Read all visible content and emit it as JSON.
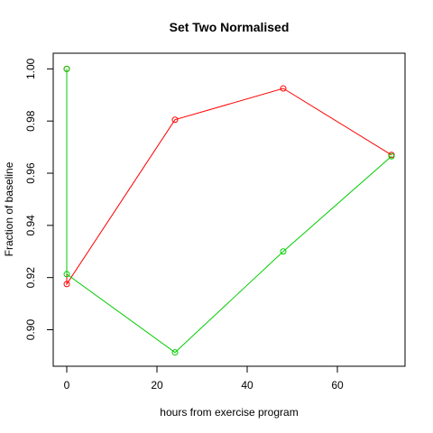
{
  "chart_data": {
    "type": "line",
    "title": "Set Two Normalised",
    "xlabel": "hours from exercise program",
    "ylabel": "Fraction of baseline",
    "xlim": [
      -3,
      75
    ],
    "ylim": [
      0.886,
      1.006
    ],
    "xticks": [
      0,
      20,
      40,
      60
    ],
    "yticks": [
      0.9,
      0.92,
      0.94,
      0.96,
      0.98,
      1.0
    ],
    "ytick_labels": [
      "0.90",
      "0.92",
      "0.94",
      "0.96",
      "0.98",
      "1.00"
    ],
    "series": [
      {
        "color": "#FF0000",
        "x": [
          0,
          0,
          24,
          48,
          72
        ],
        "y": [
          1.0,
          0.9175,
          0.9805,
          0.9925,
          0.967
        ]
      },
      {
        "color": "#00CD00",
        "x": [
          0,
          0,
          24,
          48,
          72
        ],
        "y": [
          1.0,
          0.9213,
          0.8913,
          0.93,
          0.9665
        ]
      }
    ],
    "grid": false,
    "legend": "none"
  }
}
